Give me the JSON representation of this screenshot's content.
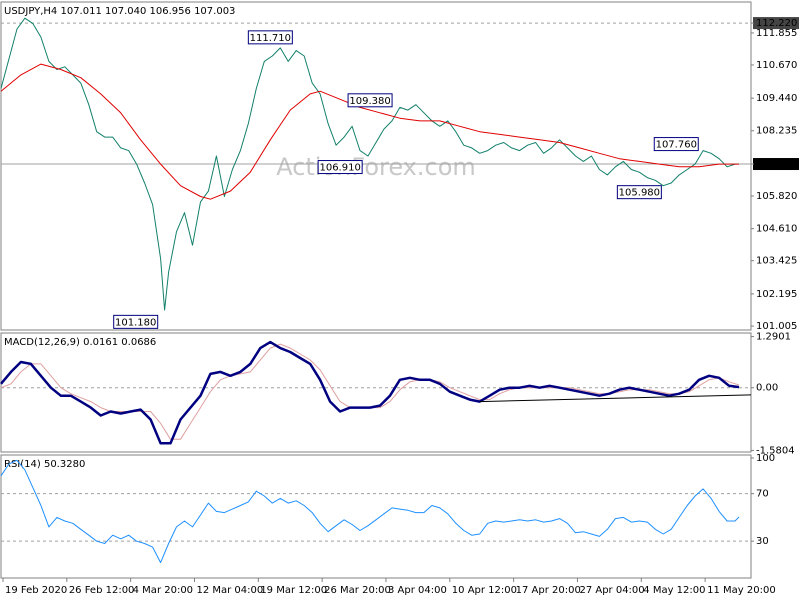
{
  "chart_data": [
    {
      "type": "line",
      "title": "USDJPY,H4  107.011 107.040 106.956 107.003",
      "watermark": "ActionForex.com",
      "xlim": [
        0,
        376
      ],
      "ylim": [
        100.86,
        113.0
      ],
      "grid": false,
      "yticks": [
        {
          "value": 112.22,
          "label": "112.220",
          "hline": "dashed"
        },
        111.855,
        {
          "value": 110.67,
          "label": "110.670"
        },
        {
          "value": 109.44,
          "label": "109.440"
        },
        108.235,
        {
          "value": 107.003,
          "label": "107.003",
          "hline": "solid"
        },
        {
          "value": 105.82,
          "label": "105.820"
        },
        {
          "value": 104.61,
          "label": "104.610"
        },
        103.425,
        102.195,
        101.005
      ],
      "series": [
        {
          "color": "#12806a",
          "line_width": 1,
          "x": [
            0,
            4,
            8,
            12,
            16,
            20,
            24,
            28,
            32,
            36,
            40,
            44,
            48,
            52,
            56,
            60,
            64,
            68,
            72,
            76,
            80,
            82,
            84,
            88,
            92,
            96,
            100,
            104,
            108,
            112,
            116,
            120,
            124,
            128,
            132,
            136,
            140,
            144,
            148,
            152,
            156,
            160,
            164,
            168,
            172,
            176,
            180,
            184,
            188,
            192,
            196,
            200,
            204,
            208,
            212,
            216,
            220,
            224,
            228,
            232,
            236,
            240,
            244,
            248,
            252,
            256,
            260,
            264,
            268,
            272,
            276,
            280,
            284,
            288,
            292,
            296,
            300,
            304,
            308,
            312,
            316,
            320,
            324,
            328,
            332,
            336,
            340,
            344,
            348,
            352,
            356,
            360,
            364,
            368,
            370
          ],
          "values": [
            109.8,
            110.9,
            112.0,
            112.4,
            112.2,
            111.7,
            110.8,
            110.5,
            110.6,
            110.3,
            110.0,
            109.2,
            108.2,
            108.0,
            108.0,
            107.6,
            107.5,
            107.0,
            106.3,
            105.5,
            103.5,
            101.6,
            103.0,
            104.5,
            105.2,
            104.0,
            105.6,
            106.0,
            107.3,
            105.8,
            106.8,
            107.5,
            108.5,
            109.8,
            110.8,
            111.0,
            111.3,
            110.8,
            111.2,
            111.0,
            110.0,
            109.6,
            108.5,
            107.7,
            108.0,
            108.4,
            107.5,
            107.3,
            107.8,
            108.3,
            108.6,
            109.1,
            109.0,
            109.2,
            108.9,
            108.6,
            108.4,
            108.6,
            108.2,
            107.7,
            107.6,
            107.4,
            107.5,
            107.7,
            107.8,
            107.6,
            107.5,
            107.7,
            107.8,
            107.4,
            107.6,
            107.9,
            107.6,
            107.3,
            107.1,
            107.3,
            106.8,
            106.6,
            106.9,
            107.1,
            106.8,
            106.7,
            106.5,
            106.4,
            106.2,
            106.3,
            106.6,
            106.8,
            107.0,
            107.5,
            107.4,
            107.2,
            106.9,
            107.0,
            107.003
          ]
        },
        {
          "color": "#e00000",
          "line_width": 1,
          "x": [
            0,
            10,
            20,
            30,
            40,
            50,
            60,
            70,
            80,
            90,
            100,
            105,
            115,
            125,
            135,
            145,
            155,
            160,
            170,
            180,
            190,
            200,
            210,
            220,
            230,
            240,
            250,
            260,
            270,
            280,
            290,
            300,
            310,
            320,
            330,
            340,
            350,
            360,
            370
          ],
          "values": [
            109.7,
            110.3,
            110.7,
            110.5,
            110.2,
            109.6,
            108.9,
            107.9,
            107.0,
            106.2,
            105.8,
            105.7,
            106.0,
            106.7,
            107.9,
            109.0,
            109.6,
            109.7,
            109.4,
            109.1,
            108.9,
            108.7,
            108.6,
            108.6,
            108.4,
            108.2,
            108.1,
            108.0,
            107.9,
            107.8,
            107.6,
            107.4,
            107.2,
            107.1,
            107.0,
            106.9,
            106.9,
            107.0,
            107.0
          ]
        }
      ],
      "annotations": [
        {
          "x": 124,
          "value": 111.71,
          "label": "111.710"
        },
        {
          "x": 174,
          "value": 109.38,
          "label": "109.380"
        },
        {
          "x": 159,
          "value": 106.91,
          "label": "106.910"
        },
        {
          "x": 327.5,
          "value": 107.76,
          "label": "107.760"
        },
        {
          "x": 309,
          "value": 105.98,
          "label": "105.980"
        },
        {
          "x": 56.5,
          "value": 101.18,
          "label": "101.180"
        }
      ]
    },
    {
      "type": "line",
      "title": "MACD(12,26,9) 0.0161 0.0686",
      "xlim": [
        0,
        376
      ],
      "ylim": [
        -1.62,
        1.38
      ],
      "grid": true,
      "yticks": [
        1.2901,
        {
          "value": 0,
          "label": "0.00"
        },
        -1.5804
      ],
      "x": [
        0,
        5,
        10,
        15,
        20,
        25,
        30,
        35,
        40,
        45,
        50,
        55,
        60,
        65,
        70,
        75,
        80,
        85,
        90,
        95,
        100,
        105,
        110,
        115,
        120,
        125,
        130,
        135,
        140,
        145,
        150,
        155,
        160,
        165,
        170,
        175,
        180,
        185,
        190,
        195,
        200,
        205,
        210,
        215,
        220,
        225,
        230,
        235,
        240,
        245,
        250,
        255,
        260,
        265,
        270,
        275,
        280,
        285,
        290,
        295,
        300,
        305,
        310,
        315,
        320,
        325,
        330,
        335,
        340,
        345,
        350,
        355,
        360,
        365,
        370
      ],
      "series": [
        {
          "color": "#e0a0a0",
          "line_width": 1,
          "values": [
            0.0,
            0.1,
            0.4,
            0.6,
            0.6,
            0.3,
            0.0,
            -0.15,
            -0.25,
            -0.35,
            -0.5,
            -0.6,
            -0.6,
            -0.6,
            -0.6,
            -0.6,
            -0.9,
            -1.3,
            -1.3,
            -0.9,
            -0.5,
            -0.1,
            0.2,
            0.3,
            0.35,
            0.4,
            0.7,
            1.0,
            1.1,
            1.0,
            0.85,
            0.7,
            0.45,
            0.05,
            -0.35,
            -0.5,
            -0.5,
            -0.5,
            -0.5,
            -0.35,
            -0.05,
            0.15,
            0.2,
            0.2,
            0.15,
            0.0,
            -0.1,
            -0.2,
            -0.3,
            -0.3,
            -0.15,
            -0.05,
            0.0,
            0.0,
            0.0,
            0.0,
            0.0,
            0.0,
            -0.05,
            -0.1,
            -0.15,
            -0.15,
            -0.1,
            -0.05,
            -0.05,
            -0.05,
            -0.1,
            -0.15,
            -0.15,
            -0.1,
            0.05,
            0.2,
            0.25,
            0.15,
            0.0686
          ]
        },
        {
          "color": "#000080",
          "line_width": 2.5,
          "values": [
            0.1,
            0.4,
            0.65,
            0.6,
            0.3,
            0.0,
            -0.2,
            -0.2,
            -0.35,
            -0.5,
            -0.7,
            -0.6,
            -0.65,
            -0.6,
            -0.55,
            -0.8,
            -1.4,
            -1.4,
            -0.8,
            -0.5,
            -0.2,
            0.35,
            0.4,
            0.3,
            0.4,
            0.6,
            1.0,
            1.15,
            1.0,
            0.9,
            0.75,
            0.6,
            0.2,
            -0.35,
            -0.6,
            -0.5,
            -0.5,
            -0.5,
            -0.45,
            -0.2,
            0.2,
            0.25,
            0.2,
            0.2,
            0.1,
            -0.1,
            -0.2,
            -0.3,
            -0.35,
            -0.2,
            -0.05,
            0.0,
            0.0,
            0.05,
            0.0,
            0.05,
            0.0,
            -0.05,
            -0.1,
            -0.15,
            -0.2,
            -0.15,
            -0.05,
            0.0,
            -0.05,
            -0.1,
            -0.15,
            -0.2,
            -0.15,
            -0.05,
            0.2,
            0.3,
            0.25,
            0.05,
            0.0161
          ]
        }
      ],
      "trendline": {
        "x": [
          240,
          376
        ],
        "values": [
          -0.35,
          -0.18
        ],
        "color": "#000000"
      }
    },
    {
      "type": "line",
      "title": "RSI(14) 50.3280",
      "xlim": [
        0,
        376
      ],
      "ylim": [
        -1,
        102.5
      ],
      "grid": true,
      "yticks": [
        100,
        70,
        30
      ],
      "x": [
        0,
        4,
        8,
        12,
        16,
        20,
        24,
        28,
        32,
        36,
        40,
        44,
        48,
        52,
        56,
        60,
        64,
        68,
        72,
        76,
        80,
        84,
        88,
        92,
        96,
        100,
        104,
        108,
        112,
        116,
        120,
        124,
        128,
        132,
        136,
        140,
        144,
        148,
        152,
        156,
        160,
        164,
        168,
        172,
        176,
        180,
        184,
        188,
        192,
        196,
        200,
        204,
        208,
        212,
        216,
        220,
        224,
        228,
        232,
        236,
        240,
        244,
        248,
        252,
        256,
        260,
        264,
        268,
        272,
        276,
        280,
        284,
        288,
        292,
        296,
        300,
        304,
        308,
        312,
        316,
        320,
        324,
        328,
        332,
        336,
        340,
        344,
        348,
        352,
        356,
        360,
        364,
        368,
        370
      ],
      "series": [
        {
          "color": "#1e90ff",
          "line_width": 1,
          "values": [
            85,
            95,
            98,
            90,
            75,
            60,
            42,
            50,
            47,
            45,
            40,
            35,
            30,
            28,
            35,
            32,
            35,
            30,
            28,
            25,
            12,
            28,
            42,
            47,
            42,
            52,
            62,
            55,
            54,
            57,
            60,
            63,
            72,
            68,
            62,
            66,
            62,
            64,
            60,
            54,
            45,
            38,
            43,
            48,
            44,
            39,
            43,
            48,
            53,
            58,
            57,
            56,
            54,
            54,
            60,
            58,
            53,
            45,
            39,
            35,
            36,
            45,
            47,
            46,
            47,
            48,
            47,
            48,
            46,
            47,
            49,
            45,
            37,
            38,
            36,
            34,
            40,
            49,
            50,
            46,
            47,
            46,
            40,
            36,
            40,
            50,
            60,
            68,
            74,
            66,
            55,
            47,
            47,
            50.328
          ]
        }
      ],
      "xticks": [
        {
          "value": 1,
          "label": "19 Feb 2020"
        },
        {
          "value": 33,
          "label": "26 Feb 12:00"
        },
        {
          "value": 65,
          "label": "4 Mar 20:00"
        },
        {
          "value": 97,
          "label": "12 Mar 04:00"
        },
        {
          "value": 129,
          "label": "19 Mar 12:00"
        },
        {
          "value": 161,
          "label": "26 Mar 20:00"
        },
        {
          "value": 193,
          "label": "3 Apr 04:00"
        },
        {
          "value": 225,
          "label": "10 Apr 12:00"
        },
        {
          "value": 257,
          "label": "17 Apr 20:00"
        },
        {
          "value": 289,
          "label": "27 Apr 04:00"
        },
        {
          "value": 321,
          "label": "4 May 12:00"
        },
        {
          "value": 353,
          "label": "11 May 20:00"
        }
      ]
    }
  ]
}
